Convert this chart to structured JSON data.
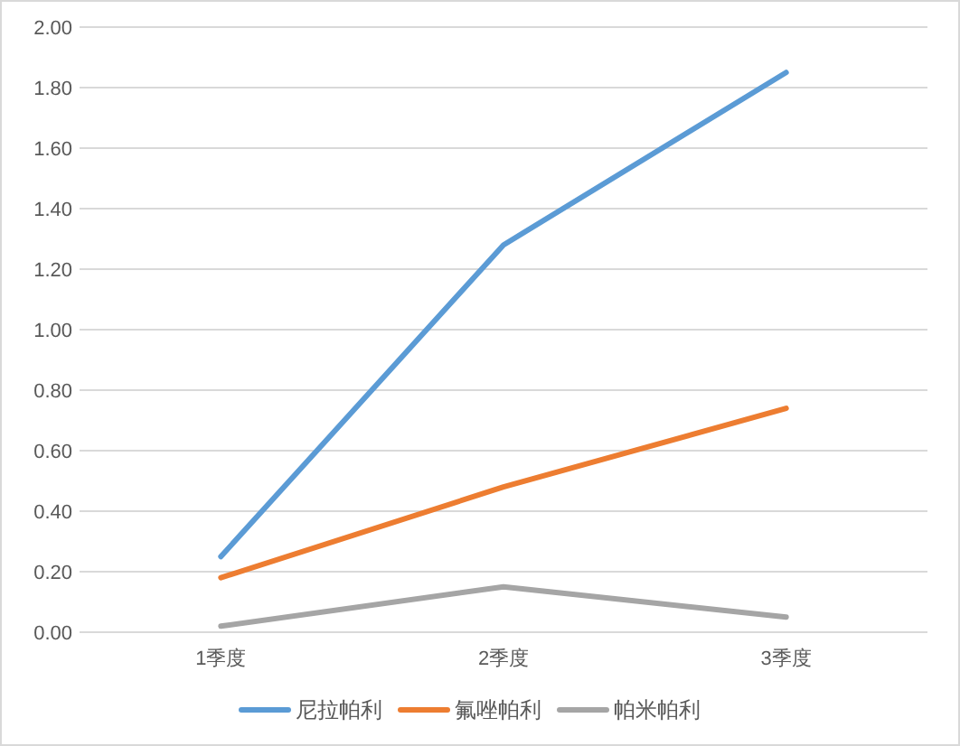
{
  "chart_data": {
    "type": "line",
    "categories": [
      "1季度",
      "2季度",
      "3季度"
    ],
    "series": [
      {
        "name": "尼拉帕利",
        "color": "#5b9bd5",
        "values": [
          0.25,
          1.28,
          1.85
        ]
      },
      {
        "name": "氟唑帕利",
        "color": "#ed7d31",
        "values": [
          0.18,
          0.48,
          0.74
        ]
      },
      {
        "name": "帕米帕利",
        "color": "#a5a5a5",
        "values": [
          0.02,
          0.15,
          0.05
        ]
      }
    ],
    "ylim": [
      0,
      2
    ],
    "yticks": [
      {
        "value": 0,
        "label": "0.00"
      },
      {
        "value": 0.2,
        "label": "0.20"
      },
      {
        "value": 0.4,
        "label": "0.40"
      },
      {
        "value": 0.6,
        "label": "0.60"
      },
      {
        "value": 0.8,
        "label": "0.80"
      },
      {
        "value": 1,
        "label": "1.00"
      },
      {
        "value": 1.2,
        "label": "1.20"
      },
      {
        "value": 1.4,
        "label": "1.40"
      },
      {
        "value": 1.6,
        "label": "1.60"
      },
      {
        "value": 1.8,
        "label": "1.80"
      },
      {
        "value": 2,
        "label": "2.00"
      }
    ],
    "grid": "y",
    "legend": "bottom",
    "marker": "none",
    "line_style": "solid"
  }
}
